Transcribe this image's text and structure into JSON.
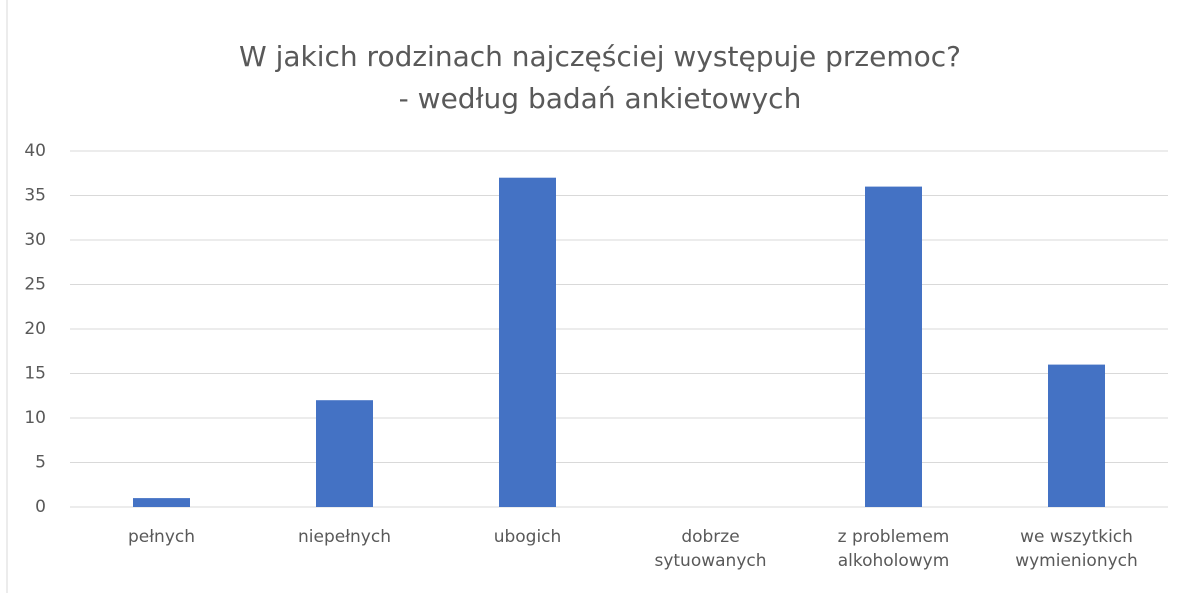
{
  "chart_data": {
    "type": "bar",
    "title": [
      "W jakich rodzinach najczęściej występuje przemoc?",
      "- według badań ankietowych"
    ],
    "categories": [
      "pełnych",
      "niepełnych",
      "ubogich",
      "dobrze sytuowanych",
      "z problemem alkoholowym",
      "we wszytkich wymienionych"
    ],
    "values": [
      1,
      12,
      37,
      0,
      36,
      16
    ],
    "color": "#4472c4",
    "ylim": [
      0,
      40
    ],
    "yticks": [
      0,
      5,
      10,
      15,
      20,
      25,
      30,
      35,
      40
    ],
    "grid": true
  }
}
